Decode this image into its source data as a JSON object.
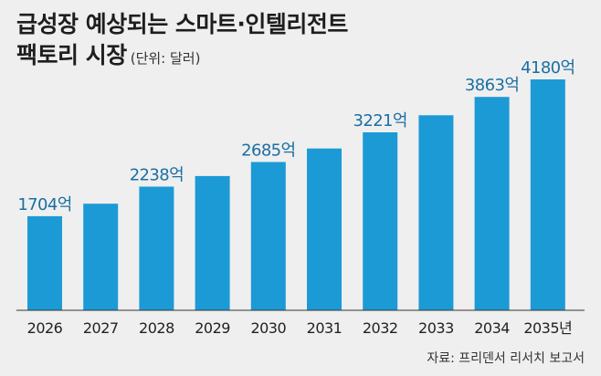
{
  "title": {
    "line1": "급성장 예상되는 스마트·인텔리전트",
    "line2": "팩토리 시장",
    "unit": "(단위: 달러)"
  },
  "source": "자료: 프리덴서 리서치 보고서",
  "colors": {
    "bar": "#1c9ad6",
    "label": "#1a6fa3",
    "background": "#efefef",
    "axis": "#333333"
  },
  "chart_data": {
    "type": "bar",
    "title": "급성장 예상되는 스마트·인텔리전트 팩토리 시장",
    "xlabel": "",
    "ylabel": "",
    "ylim": [
      0,
      4180
    ],
    "categories": [
      "2026",
      "2027",
      "2028",
      "2029",
      "2030",
      "2031",
      "2032",
      "2033",
      "2034",
      "2035년"
    ],
    "values": [
      1704,
      1930,
      2238,
      2430,
      2685,
      2930,
      3221,
      3530,
      3863,
      4180
    ],
    "data_labels": [
      "1704억",
      null,
      "2238억",
      null,
      "2685억",
      null,
      "3221억",
      null,
      "3863억",
      "4180억"
    ]
  }
}
